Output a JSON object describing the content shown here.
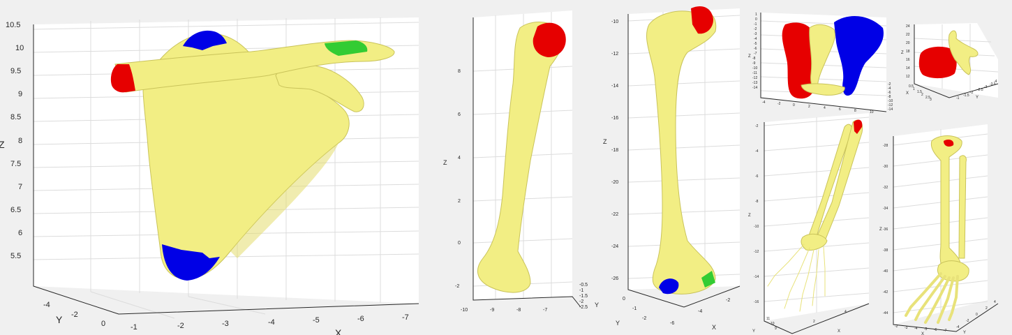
{
  "colors": {
    "background": "#f0f0f0",
    "axes_face": "#ffffff",
    "grid": "#dcdcdc",
    "bone": "#f2ee84",
    "bone_shade": "#e3dc6e",
    "region_red": "#e60000",
    "region_blue": "#0000e6",
    "region_green": "#33cc33"
  },
  "panels": {
    "scapula": {
      "z_ticks": [
        "10.5",
        "10",
        "9.5",
        "9",
        "8.5",
        "8",
        "7.5",
        "7",
        "6.5",
        "6",
        "5.5"
      ],
      "y_ticks": [
        "-4",
        "-2",
        "0"
      ],
      "x_ticks": [
        "-1",
        "-2",
        "-3",
        "-4",
        "-5",
        "-6",
        "-7"
      ],
      "z_label": "Z",
      "y_label": "Y",
      "x_label": "X"
    },
    "humerus": {
      "z_ticks": [
        "8",
        "6",
        "4",
        "2",
        "0",
        "-2"
      ],
      "x_ticks": [
        "-10",
        "-9",
        "-8",
        "-7"
      ],
      "y_ticks": [
        "-0.5",
        "-1",
        "-1.5",
        "-2",
        "-2.5"
      ],
      "z_label": "Z",
      "y_label": "Y"
    },
    "femur": {
      "z_ticks": [
        "-10",
        "-12",
        "-14",
        "-16",
        "-18",
        "-20",
        "-22",
        "-24",
        "-26"
      ],
      "y_ticks": [
        "0",
        "-1",
        "-2"
      ],
      "x_ticks": [
        "-6",
        "-4",
        "-2"
      ],
      "z_label": "Z",
      "y_label": "Y",
      "x_label": "X"
    },
    "pelvis": {
      "z_ticks": [
        "1",
        "0",
        "-1",
        "-2",
        "-3",
        "-4",
        "-5",
        "-6",
        "-7",
        "-8",
        "-9",
        "-10",
        "-11",
        "-12",
        "-13",
        "-14"
      ],
      "x_ticks": [
        "-4",
        "-2",
        "0",
        "2",
        "4",
        "6",
        "8",
        "10"
      ],
      "y_ticks": [
        "-2",
        "-4",
        "-6",
        "-8",
        "-10",
        "-12",
        "-14"
      ],
      "z_label": "Z"
    },
    "vertebra": {
      "z_ticks": [
        "24",
        "22",
        "20",
        "18",
        "16",
        "14",
        "12"
      ],
      "x_ticks": [
        "0.5",
        "1",
        "1.5",
        "2",
        "2.5",
        "3"
      ],
      "y_ticks": [
        "-1",
        "-1.5",
        "-2",
        "-2.5",
        "-3",
        "-3.5",
        "-4"
      ],
      "z_label": "Z",
      "y_label": "Y",
      "x_label": "X"
    },
    "forearm": {
      "z_ticks": [
        "-2",
        "-4",
        "-6",
        "-8",
        "-10",
        "-12",
        "-14",
        "-16"
      ],
      "y_ticks": [
        "11",
        "10",
        "9"
      ],
      "x_ticks": [
        "2",
        "4"
      ],
      "z_label": "Z",
      "y_label": "Y",
      "x_label": "X"
    },
    "leg": {
      "z_ticks": [
        "-28",
        "-30",
        "-32",
        "-34",
        "-36",
        "-38",
        "-40",
        "-42",
        "-44"
      ],
      "x_ticks": [
        "-2",
        "-3",
        "-4",
        "-5",
        "-6",
        "-7"
      ],
      "y_ticks": [
        "-4",
        "-2",
        "0",
        "2",
        "4"
      ],
      "z_label": "Z",
      "x_label": "X",
      "y_label": "Y"
    }
  }
}
